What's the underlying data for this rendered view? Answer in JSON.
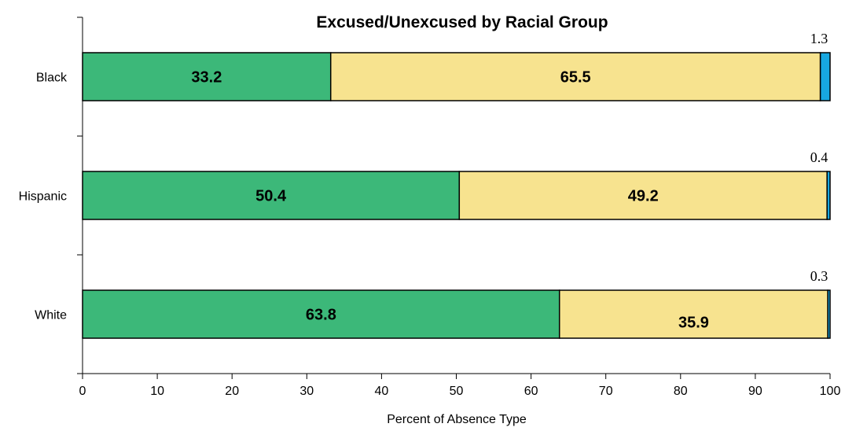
{
  "chart_data": {
    "type": "bar",
    "orientation": "horizontal",
    "stacked": true,
    "title": "Excused/Unexcused by Racial Group",
    "xlabel": "Percent of Absence Type",
    "ylabel": "",
    "xlim": [
      0,
      100
    ],
    "xticks": [
      "0",
      "10",
      "20",
      "30",
      "40",
      "50",
      "60",
      "70",
      "80",
      "90",
      "100"
    ],
    "categories": [
      "Black",
      "Hispanic",
      "White"
    ],
    "series": [
      {
        "color": "#3cb879",
        "values": [
          33.2,
          50.4,
          63.8
        ],
        "labels": [
          "33.2",
          "50.4",
          "63.8"
        ]
      },
      {
        "color": "#f7e38f",
        "values": [
          65.5,
          49.2,
          35.9
        ],
        "labels": [
          "65.5",
          "49.2",
          "35.9"
        ]
      },
      {
        "color": "#17a7e0",
        "values": [
          1.3,
          0.4,
          0.3
        ],
        "labels": [
          "1.3",
          "0.4",
          "0.3"
        ]
      }
    ],
    "legend": "none",
    "grid": false
  }
}
